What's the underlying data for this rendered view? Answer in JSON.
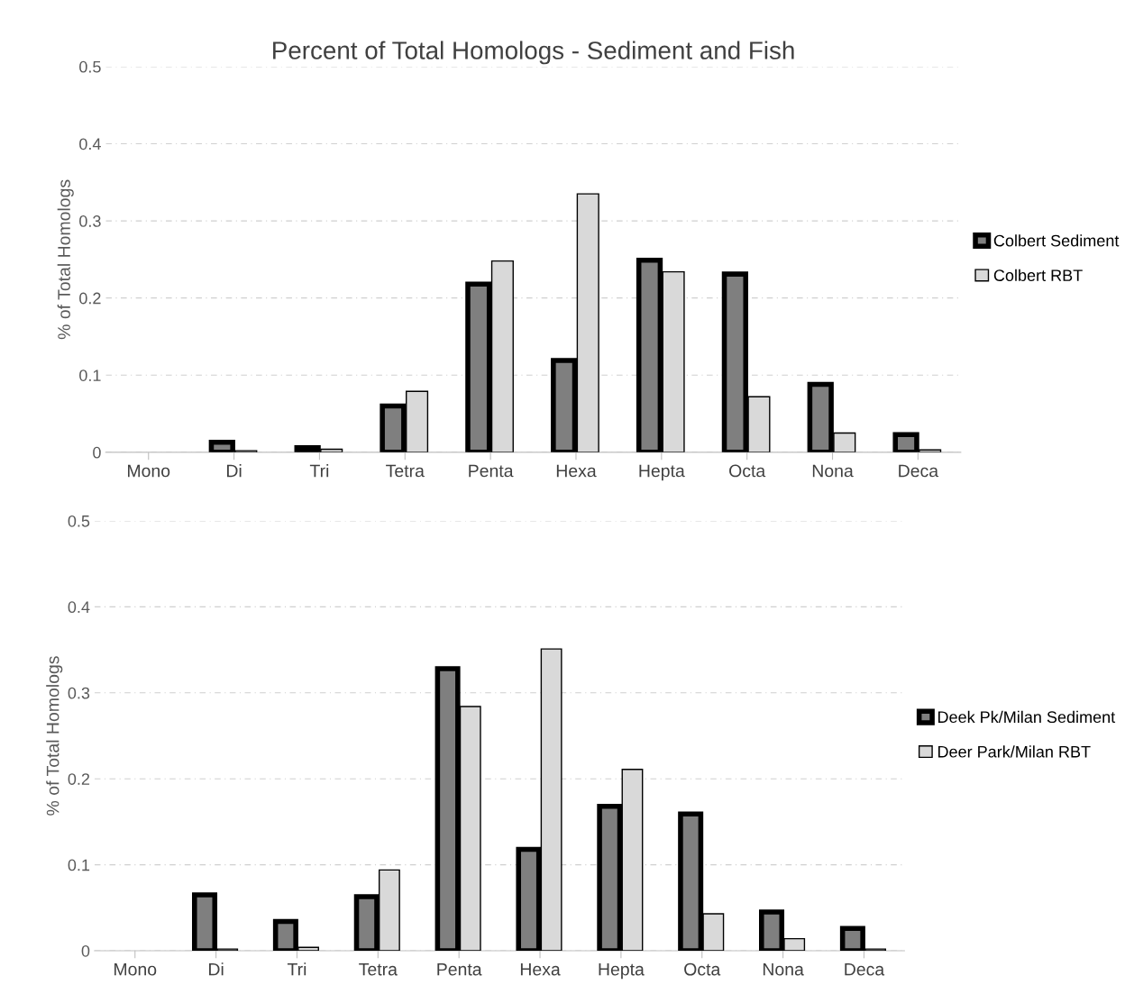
{
  "chart_data": [
    {
      "type": "bar",
      "title": "Percent of Total Homologs - Sediment and Fish",
      "ylabel": "% of Total Homologs",
      "categories": [
        "Mono",
        "Di",
        "Tri",
        "Tetra",
        "Penta",
        "Hexa",
        "Hepta",
        "Octa",
        "Nona",
        "Deca"
      ],
      "series": [
        {
          "name": "Colbert Sediment",
          "color": "#7f7f7f",
          "values": [
            null,
            0.013,
            0.006,
            0.06,
            0.218,
            0.119,
            0.249,
            0.231,
            0.088,
            0.023
          ]
        },
        {
          "name": "Colbert RBT",
          "color": "#d9d9d9",
          "values": [
            null,
            0.002,
            0.004,
            0.079,
            0.248,
            0.335,
            0.234,
            0.072,
            0.025,
            0.003
          ]
        }
      ],
      "ylim": [
        0,
        0.5
      ],
      "yticks": [
        0,
        0.1,
        0.2,
        0.3,
        0.4,
        0.5
      ],
      "grid": "y",
      "legend": "right"
    },
    {
      "type": "bar",
      "ylabel": "% of Total Homologs",
      "categories": [
        "Mono",
        "Di",
        "Tri",
        "Tetra",
        "Penta",
        "Hexa",
        "Hepta",
        "Octa",
        "Nona",
        "Deca"
      ],
      "series": [
        {
          "name": "Deek Pk/Milan Sediment",
          "color": "#7f7f7f",
          "values": [
            null,
            0.065,
            0.034,
            0.063,
            0.328,
            0.118,
            0.168,
            0.159,
            0.045,
            0.026
          ]
        },
        {
          "name": "Deer Park/Milan RBT",
          "color": "#d9d9d9",
          "values": [
            null,
            0.002,
            0.004,
            0.094,
            0.284,
            0.351,
            0.211,
            0.043,
            0.014,
            0.002
          ]
        }
      ],
      "ylim": [
        0,
        0.5
      ],
      "yticks": [
        0,
        0.1,
        0.2,
        0.3,
        0.4,
        0.5
      ],
      "grid": "y",
      "legend": "right"
    }
  ]
}
